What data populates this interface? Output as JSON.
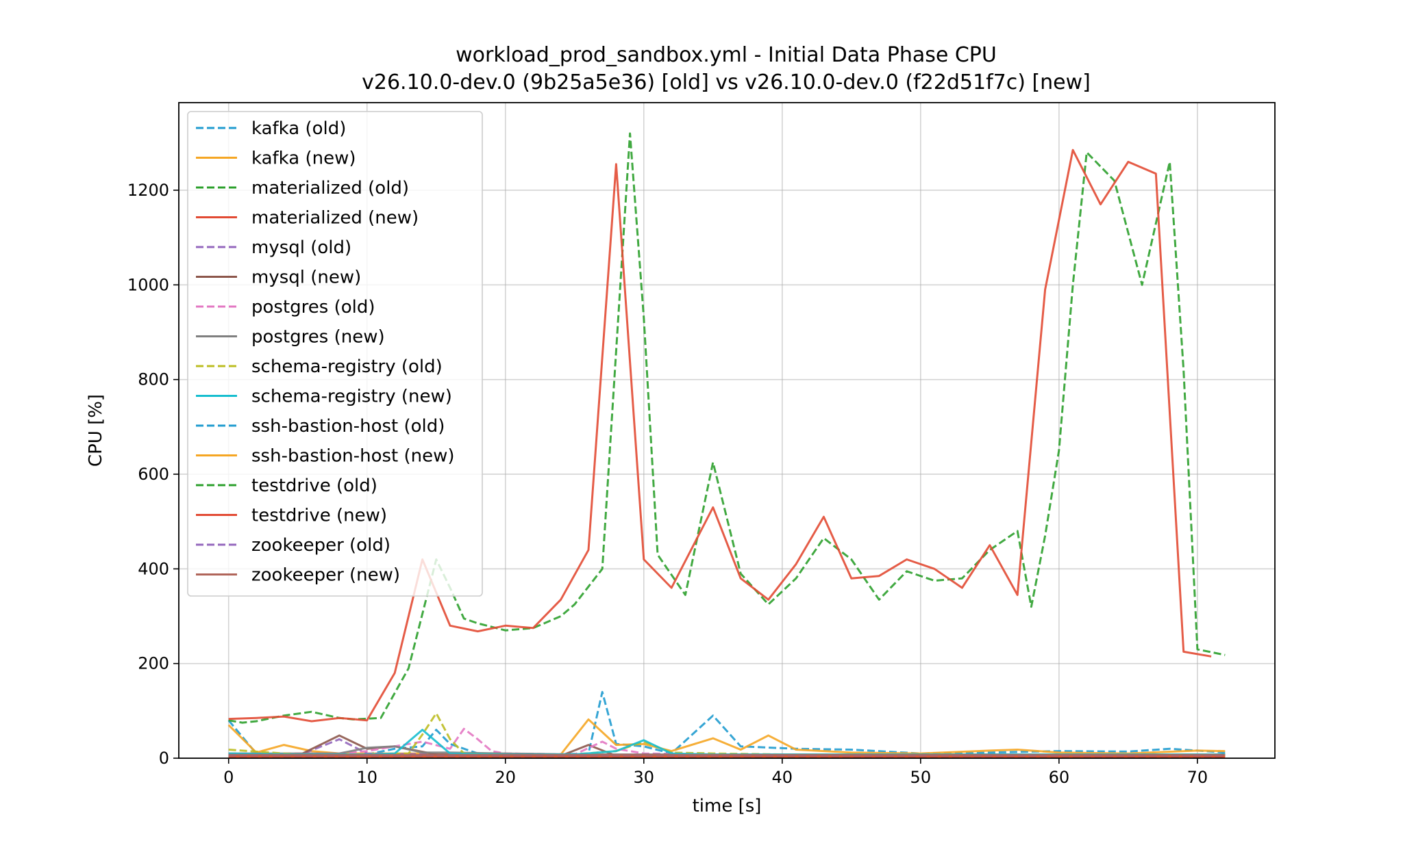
{
  "chart_data": {
    "type": "line",
    "title": "workload_prod_sandbox.yml - Initial Data Phase CPU",
    "subtitle": "v26.10.0-dev.0 (9b25a5e36) [old] vs v26.10.0-dev.0 (f22d51f7c) [new]",
    "xlabel": "time [s]",
    "ylabel": "CPU [%]",
    "xlim": [
      -3.6,
      75.6
    ],
    "ylim": [
      0,
      1385
    ],
    "xticks": [
      0,
      10,
      20,
      30,
      40,
      50,
      60,
      70
    ],
    "yticks": [
      0,
      200,
      400,
      600,
      800,
      1000,
      1200
    ],
    "grid": true,
    "legend_position": "top-left",
    "series": [
      {
        "name": "kafka (old)",
        "color": "#1f9bcf",
        "dash": true,
        "x": [
          0,
          2,
          4,
          6,
          8,
          10,
          12,
          14,
          15,
          16,
          18,
          20,
          22,
          24,
          26,
          27,
          28,
          30,
          32,
          35,
          37,
          41,
          45,
          50,
          55,
          60,
          65,
          68,
          72
        ],
        "y": [
          80,
          10,
          8,
          6,
          5,
          8,
          20,
          25,
          60,
          30,
          10,
          8,
          8,
          8,
          10,
          140,
          30,
          25,
          10,
          90,
          25,
          20,
          18,
          10,
          12,
          15,
          14,
          20,
          12
        ]
      },
      {
        "name": "kafka (new)",
        "color": "#f5a623",
        "dash": false,
        "x": [
          0,
          2,
          4,
          6,
          8,
          10,
          12,
          14,
          16,
          18,
          20,
          22,
          24,
          26,
          28,
          30,
          32,
          35,
          37,
          39,
          41,
          45,
          50,
          55,
          57,
          60,
          65,
          70,
          72
        ],
        "y": [
          70,
          12,
          28,
          15,
          10,
          10,
          10,
          10,
          8,
          8,
          8,
          8,
          8,
          82,
          28,
          30,
          15,
          42,
          18,
          48,
          18,
          12,
          10,
          16,
          18,
          12,
          10,
          16,
          15
        ]
      },
      {
        "name": "materialized (old)",
        "color": "#2ca02c",
        "dash": true,
        "x": [
          0,
          1,
          2,
          4,
          6,
          8,
          9,
          11,
          13,
          15,
          16,
          17,
          18,
          20,
          22,
          24,
          25,
          27,
          29,
          30,
          31,
          33,
          35,
          37,
          39,
          41,
          43,
          45,
          47,
          49,
          51,
          53,
          55,
          57,
          58,
          59,
          60,
          61,
          62,
          64,
          66,
          68,
          69,
          70,
          72
        ],
        "y": [
          80,
          75,
          78,
          90,
          98,
          85,
          82,
          85,
          190,
          420,
          360,
          295,
          285,
          270,
          275,
          300,
          325,
          400,
          1320,
          930,
          430,
          345,
          625,
          390,
          325,
          380,
          465,
          420,
          335,
          395,
          375,
          380,
          440,
          480,
          320,
          470,
          650,
          1000,
          1280,
          1220,
          1000,
          1260,
          820,
          230,
          218
        ]
      },
      {
        "name": "materialized (new)",
        "color": "#e24a33",
        "dash": false,
        "x": [
          0,
          2,
          4,
          6,
          8,
          10,
          12,
          14,
          16,
          18,
          20,
          22,
          24,
          26,
          28,
          30,
          32,
          35,
          37,
          39,
          41,
          43,
          45,
          47,
          49,
          51,
          53,
          55,
          57,
          59,
          61,
          63,
          65,
          67,
          69,
          71
        ],
        "y": [
          83,
          85,
          88,
          78,
          85,
          80,
          180,
          420,
          280,
          268,
          280,
          275,
          335,
          440,
          1255,
          420,
          360,
          530,
          380,
          335,
          410,
          510,
          380,
          385,
          420,
          400,
          360,
          450,
          345,
          990,
          1285,
          1170,
          1260,
          1235,
          225,
          215
        ]
      },
      {
        "name": "mysql (old)",
        "color": "#9467bd",
        "dash": true,
        "x": [
          0,
          5,
          8,
          10,
          15,
          20,
          25,
          30,
          35,
          40,
          45,
          50,
          55,
          60,
          65,
          70,
          72
        ],
        "y": [
          5,
          5,
          40,
          10,
          8,
          5,
          5,
          5,
          5,
          5,
          5,
          5,
          5,
          5,
          5,
          5,
          5
        ]
      },
      {
        "name": "mysql (new)",
        "color": "#8c564b",
        "dash": false,
        "x": [
          0,
          5,
          8,
          10,
          12,
          15,
          20,
          24,
          26,
          28,
          30,
          35,
          40,
          45,
          50,
          55,
          60,
          65,
          70,
          72
        ],
        "y": [
          5,
          5,
          48,
          20,
          25,
          8,
          5,
          5,
          28,
          5,
          5,
          5,
          5,
          5,
          5,
          5,
          5,
          5,
          5,
          5
        ]
      },
      {
        "name": "postgres (old)",
        "color": "#e377c2",
        "dash": true,
        "x": [
          0,
          8,
          10,
          12,
          14,
          16,
          17,
          18,
          19,
          20,
          25,
          27,
          28,
          30,
          35,
          40,
          45,
          50,
          55,
          60,
          65,
          70,
          72
        ],
        "y": [
          10,
          10,
          15,
          25,
          35,
          20,
          62,
          40,
          15,
          10,
          8,
          35,
          20,
          10,
          8,
          8,
          8,
          8,
          8,
          8,
          8,
          8,
          8
        ]
      },
      {
        "name": "postgres (new)",
        "color": "#7f7f7f",
        "dash": false,
        "x": [
          0,
          8,
          10,
          12,
          14,
          16,
          20,
          25,
          30,
          35,
          40,
          45,
          50,
          55,
          60,
          65,
          70,
          72
        ],
        "y": [
          10,
          10,
          22,
          25,
          12,
          12,
          10,
          8,
          8,
          8,
          8,
          8,
          8,
          8,
          8,
          8,
          8,
          8
        ]
      },
      {
        "name": "schema-registry (old)",
        "color": "#bcbd22",
        "dash": true,
        "x": [
          0,
          5,
          10,
          13,
          14,
          15,
          16,
          17,
          20,
          25,
          28,
          30,
          32,
          35,
          40,
          45,
          50,
          55,
          60,
          65,
          70,
          72
        ],
        "y": [
          18,
          8,
          8,
          10,
          50,
          95,
          40,
          10,
          8,
          8,
          15,
          35,
          12,
          10,
          8,
          8,
          8,
          8,
          8,
          8,
          8,
          8
        ]
      },
      {
        "name": "schema-registry (new)",
        "color": "#17becf",
        "dash": false,
        "x": [
          0,
          5,
          10,
          12,
          14,
          16,
          20,
          25,
          28,
          30,
          32,
          35,
          40,
          45,
          50,
          55,
          60,
          65,
          70,
          72
        ],
        "y": [
          10,
          8,
          8,
          10,
          60,
          10,
          8,
          8,
          15,
          38,
          10,
          8,
          8,
          8,
          8,
          8,
          8,
          8,
          8,
          8
        ]
      },
      {
        "name": "ssh-bastion-host (old)",
        "color": "#1f9bcf",
        "dash": true,
        "x": [
          0,
          10,
          20,
          30,
          40,
          50,
          60,
          70,
          72
        ],
        "y": [
          5,
          5,
          5,
          5,
          5,
          5,
          5,
          5,
          5
        ]
      },
      {
        "name": "ssh-bastion-host (new)",
        "color": "#f5a623",
        "dash": false,
        "x": [
          0,
          10,
          20,
          30,
          40,
          50,
          60,
          70,
          72
        ],
        "y": [
          4,
          4,
          4,
          4,
          4,
          4,
          4,
          4,
          4
        ]
      },
      {
        "name": "testdrive (old)",
        "color": "#2ca02c",
        "dash": true,
        "x": [
          0,
          10,
          20,
          30,
          40,
          50,
          60,
          70,
          72
        ],
        "y": [
          3,
          3,
          3,
          3,
          3,
          3,
          3,
          3,
          3
        ]
      },
      {
        "name": "testdrive (new)",
        "color": "#e24a33",
        "dash": false,
        "x": [
          0,
          10,
          20,
          30,
          40,
          50,
          60,
          70,
          72
        ],
        "y": [
          3,
          3,
          3,
          3,
          3,
          3,
          3,
          3,
          3
        ]
      },
      {
        "name": "zookeeper (old)",
        "color": "#9467bd",
        "dash": true,
        "x": [
          0,
          10,
          20,
          30,
          40,
          50,
          60,
          70,
          72
        ],
        "y": [
          6,
          6,
          6,
          6,
          6,
          6,
          6,
          6,
          6
        ]
      },
      {
        "name": "zookeeper (new)",
        "color": "#b0655a",
        "dash": false,
        "x": [
          0,
          10,
          20,
          30,
          40,
          50,
          60,
          70,
          72
        ],
        "y": [
          7,
          7,
          7,
          7,
          7,
          7,
          7,
          7,
          7
        ]
      }
    ]
  }
}
